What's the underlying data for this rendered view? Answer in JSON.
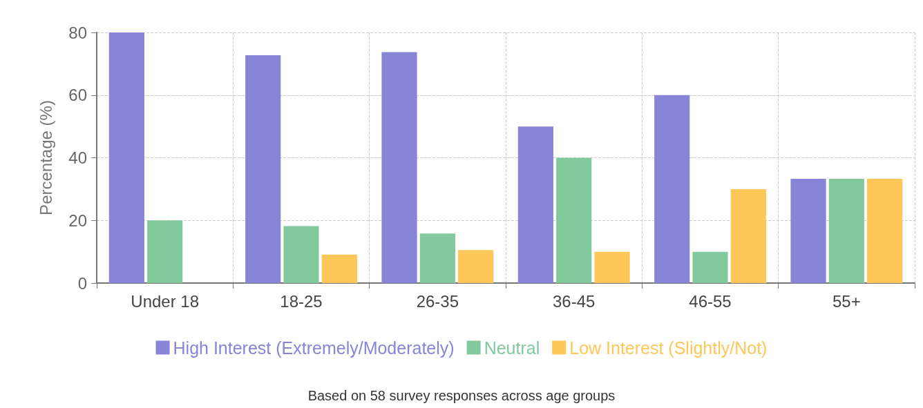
{
  "chart_data": {
    "type": "bar",
    "ylabel": "Percentage (%)",
    "categories": [
      "Under 18",
      "18-25",
      "26-35",
      "36-45",
      "46-55",
      "55+"
    ],
    "series": [
      {
        "name": "High Interest (Extremely/Moderately)",
        "color": "#8884d8",
        "values": [
          80,
          72.7,
          73.7,
          50,
          60,
          33.3
        ]
      },
      {
        "name": "Neutral",
        "color": "#82ca9d",
        "values": [
          20,
          18.2,
          15.8,
          40,
          10,
          33.3
        ]
      },
      {
        "name": "Low Interest (Slightly/Not)",
        "color": "#ffc658",
        "values": [
          0,
          9.1,
          10.5,
          10,
          30,
          33.3
        ]
      }
    ],
    "ylim": [
      0,
      80
    ],
    "yticks": [
      0,
      20,
      40,
      60,
      80
    ],
    "grid": true,
    "legend": "bottom",
    "annotations": [
      "Based on 58 survey responses across age groups"
    ]
  }
}
